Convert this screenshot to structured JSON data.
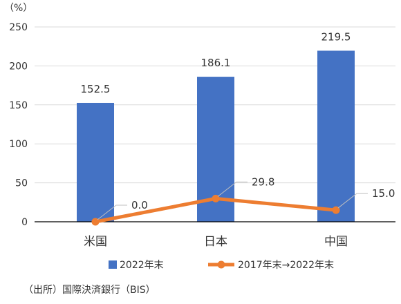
{
  "chart_data": {
    "type": "bar",
    "categories": [
      "米国",
      "日本",
      "中国"
    ],
    "y_unit": "（%）",
    "ylim": [
      0,
      250
    ],
    "yticks": [
      0,
      50,
      100,
      150,
      200,
      250
    ],
    "grid": true,
    "legend_position": "bottom",
    "series": [
      {
        "name": "2022年末",
        "kind": "bar",
        "color": "#4472c4",
        "values": [
          152.5,
          186.1,
          219.5
        ],
        "labels": [
          "152.5",
          "186.1",
          "219.5"
        ]
      },
      {
        "name": "2017年末→2022年末",
        "kind": "line",
        "color": "#ed7d31",
        "values": [
          0.0,
          29.8,
          15.0
        ],
        "labels": [
          "0.0",
          "29.8",
          "15.0"
        ]
      }
    ]
  },
  "footer": {
    "source": "（出所）国際決済銀行（BIS）"
  }
}
